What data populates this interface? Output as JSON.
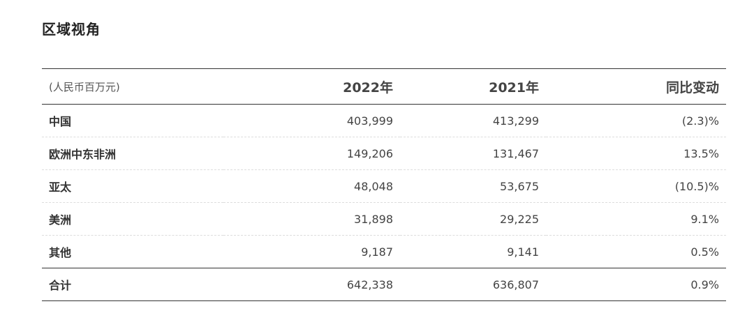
{
  "title": "区域视角",
  "table": {
    "headers": {
      "unit": "(人民币百万元)",
      "col_2022": "2022年",
      "col_2021": "2021年",
      "col_change": "同比变动"
    },
    "rows": [
      {
        "region": "中国",
        "v2022": "403,999",
        "v2021": "413,299",
        "change": "(2.3)%"
      },
      {
        "region": "欧洲中东非洲",
        "v2022": "149,206",
        "v2021": "131,467",
        "change": "13.5%"
      },
      {
        "region": "亚太",
        "v2022": "48,048",
        "v2021": "53,675",
        "change": "(10.5)%"
      },
      {
        "region": "美洲",
        "v2022": "31,898",
        "v2021": "29,225",
        "change": "9.1%"
      },
      {
        "region": "其他",
        "v2022": "9,187",
        "v2021": "9,141",
        "change": "0.5%"
      }
    ],
    "total": {
      "region": "合计",
      "v2022": "642,338",
      "v2021": "636,807",
      "change": "0.9%"
    }
  }
}
